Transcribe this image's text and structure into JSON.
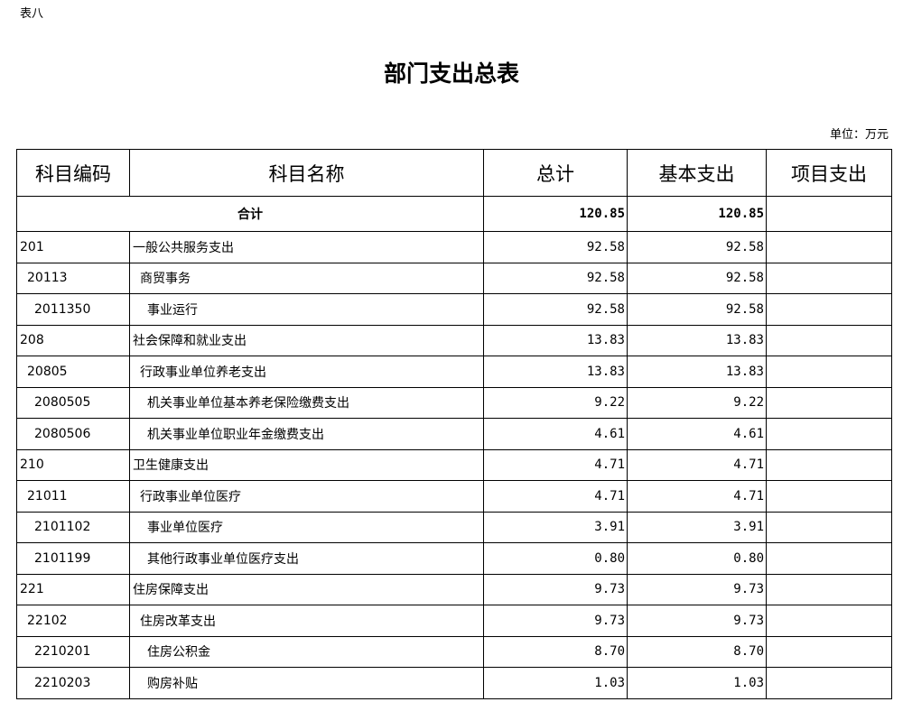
{
  "doc": {
    "tag": "表八",
    "title": "部门支出总表",
    "unit": "单位：万元"
  },
  "headers": [
    "科目编码",
    "科目名称",
    "总计",
    "基本支出",
    "项目支出"
  ],
  "total": {
    "label": "合计",
    "total": "120.85",
    "basic": "120.85",
    "project": ""
  },
  "rows": [
    {
      "code": "201",
      "name": "一般公共服务支出",
      "total": "92.58",
      "basic": "92.58",
      "project": "",
      "level": 1
    },
    {
      "code": "20113",
      "name": "商贸事务",
      "total": "92.58",
      "basic": "92.58",
      "project": "",
      "level": 2
    },
    {
      "code": "2011350",
      "name": "事业运行",
      "total": "92.58",
      "basic": "92.58",
      "project": "",
      "level": 3
    },
    {
      "code": "208",
      "name": "社会保障和就业支出",
      "total": "13.83",
      "basic": "13.83",
      "project": "",
      "level": 1
    },
    {
      "code": "20805",
      "name": "行政事业单位养老支出",
      "total": "13.83",
      "basic": "13.83",
      "project": "",
      "level": 2
    },
    {
      "code": "2080505",
      "name": "机关事业单位基本养老保险缴费支出",
      "total": "9.22",
      "basic": "9.22",
      "project": "",
      "level": 3
    },
    {
      "code": "2080506",
      "name": "机关事业单位职业年金缴费支出",
      "total": "4.61",
      "basic": "4.61",
      "project": "",
      "level": 3
    },
    {
      "code": "210",
      "name": "卫生健康支出",
      "total": "4.71",
      "basic": "4.71",
      "project": "",
      "level": 1
    },
    {
      "code": "21011",
      "name": "行政事业单位医疗",
      "total": "4.71",
      "basic": "4.71",
      "project": "",
      "level": 2
    },
    {
      "code": "2101102",
      "name": "事业单位医疗",
      "total": "3.91",
      "basic": "3.91",
      "project": "",
      "level": 3
    },
    {
      "code": "2101199",
      "name": "其他行政事业单位医疗支出",
      "total": "0.80",
      "basic": "0.80",
      "project": "",
      "level": 3
    },
    {
      "code": "221",
      "name": "住房保障支出",
      "total": "9.73",
      "basic": "9.73",
      "project": "",
      "level": 1
    },
    {
      "code": "22102",
      "name": "住房改革支出",
      "total": "9.73",
      "basic": "9.73",
      "project": "",
      "level": 2
    },
    {
      "code": "2210201",
      "name": "住房公积金",
      "total": "8.70",
      "basic": "8.70",
      "project": "",
      "level": 3
    },
    {
      "code": "2210203",
      "name": "购房补贴",
      "total": "1.03",
      "basic": "1.03",
      "project": "",
      "level": 3
    }
  ]
}
